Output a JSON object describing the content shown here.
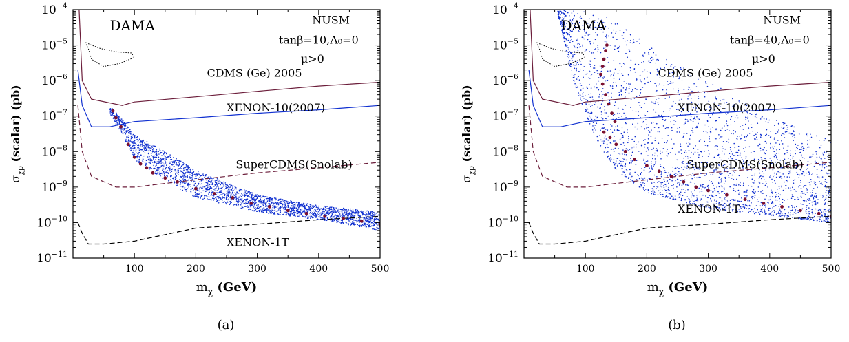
{
  "chart_data": [
    {
      "type": "scatter",
      "panel_label": "(a)",
      "xlabel": "m_χ (GeV)",
      "ylabel": "σ_χp (scalar) (pb)",
      "xlim": [
        0,
        500
      ],
      "ylim": [
        1e-11,
        0.0001
      ],
      "yscale": "log",
      "x_ticks": [
        "100",
        "200",
        "300",
        "400",
        "500"
      ],
      "y_ticks": [
        {
          "value": 1e-11,
          "base": "10",
          "exp": "−11"
        },
        {
          "value": 1e-10,
          "base": "10",
          "exp": "−10"
        },
        {
          "value": 1e-09,
          "base": "10",
          "exp": "−9"
        },
        {
          "value": 1e-08,
          "base": "10",
          "exp": "−8"
        },
        {
          "value": 1e-07,
          "base": "10",
          "exp": "−7"
        },
        {
          "value": 1e-06,
          "base": "10",
          "exp": "−6"
        },
        {
          "value": 1e-05,
          "base": "10",
          "exp": "−5"
        },
        {
          "value": 0.0001,
          "base": "10",
          "exp": "−4"
        }
      ],
      "annotations": {
        "model": "NUSM",
        "params": "tanβ=10,A₀=0",
        "mu": "μ>0",
        "dama": "DAMA"
      },
      "curves": [
        {
          "name": "CDMS (Ge) 2005",
          "style": "solid",
          "color": "#6b1d3a",
          "points": [
            [
              10,
              0.0001
            ],
            [
              15,
              1e-06
            ],
            [
              30,
              3e-07
            ],
            [
              80,
              2e-07
            ],
            [
              100,
              2.5e-07
            ],
            [
              200,
              3.5e-07
            ],
            [
              300,
              5e-07
            ],
            [
              400,
              7e-07
            ],
            [
              500,
              9e-07
            ]
          ]
        },
        {
          "name": "XENON-10(2007)",
          "style": "solid",
          "color": "#1030d0",
          "points": [
            [
              8,
              2e-06
            ],
            [
              15,
              2e-07
            ],
            [
              30,
              5e-08
            ],
            [
              60,
              5e-08
            ],
            [
              100,
              7e-08
            ],
            [
              200,
              9e-08
            ],
            [
              300,
              1.2e-07
            ],
            [
              400,
              1.5e-07
            ],
            [
              500,
              2e-07
            ]
          ]
        },
        {
          "name": "SuperCDMS(Snolab)",
          "style": "dashed",
          "color": "#6b1d3a",
          "points": [
            [
              8,
              2e-07
            ],
            [
              15,
              1e-08
            ],
            [
              30,
              2e-09
            ],
            [
              70,
              1e-09
            ],
            [
              100,
              1e-09
            ],
            [
              200,
              1.6e-09
            ],
            [
              300,
              2.5e-09
            ],
            [
              400,
              3.5e-09
            ],
            [
              500,
              5e-09
            ]
          ]
        },
        {
          "name": "XENON-1T",
          "style": "dashed",
          "color": "#000000",
          "points": [
            [
              8,
              1e-10
            ],
            [
              15,
              5e-11
            ],
            [
              25,
              2.5e-11
            ],
            [
              50,
              2.5e-11
            ],
            [
              100,
              3e-11
            ],
            [
              200,
              7e-11
            ],
            [
              300,
              9e-11
            ],
            [
              400,
              1.2e-10
            ],
            [
              500,
              1.5e-10
            ]
          ]
        }
      ],
      "dama_region": [
        [
          20,
          1.2e-05
        ],
        [
          25,
          8e-06
        ],
        [
          30,
          4e-06
        ],
        [
          50,
          2.5e-06
        ],
        [
          75,
          3e-06
        ],
        [
          100,
          4.5e-06
        ],
        [
          95,
          6e-06
        ],
        [
          70,
          6.5e-06
        ],
        [
          45,
          8e-06
        ],
        [
          30,
          1e-05
        ],
        [
          20,
          1.2e-05
        ]
      ],
      "scan_band": {
        "color": "#1030d0",
        "x_min": 60,
        "x_max": 500,
        "lower": [
          [
            60,
            1.2e-07
          ],
          [
            80,
            3e-08
          ],
          [
            100,
            6e-09
          ],
          [
            150,
            1.5e-09
          ],
          [
            200,
            5e-10
          ],
          [
            300,
            2e-10
          ],
          [
            400,
            1.2e-10
          ],
          [
            500,
            6e-11
          ]
        ],
        "upper": [
          [
            60,
            2e-07
          ],
          [
            80,
            8e-08
          ],
          [
            100,
            3e-08
          ],
          [
            150,
            1e-08
          ],
          [
            200,
            3e-09
          ],
          [
            300,
            6e-10
          ],
          [
            400,
            3e-10
          ],
          [
            500,
            2e-10
          ]
        ]
      },
      "highlight_points": {
        "color": "#7a1030",
        "points": [
          [
            65,
            1.4e-07
          ],
          [
            70,
            9e-08
          ],
          [
            78,
            5e-08
          ],
          [
            90,
            1.6e-08
          ],
          [
            100,
            7e-09
          ],
          [
            110,
            4.5e-09
          ],
          [
            120,
            3.5e-09
          ],
          [
            130,
            2.5e-09
          ],
          [
            150,
            1.8e-09
          ],
          [
            170,
            1.4e-09
          ],
          [
            200,
            9e-10
          ],
          [
            230,
            6.5e-10
          ],
          [
            260,
            5e-10
          ],
          [
            290,
            3.5e-10
          ],
          [
            320,
            2.8e-10
          ],
          [
            350,
            2.2e-10
          ],
          [
            380,
            1.8e-10
          ],
          [
            410,
            1.5e-10
          ],
          [
            440,
            1.3e-10
          ],
          [
            470,
            1.1e-10
          ],
          [
            500,
            9e-11
          ]
        ]
      }
    },
    {
      "type": "scatter",
      "panel_label": "(b)",
      "xlabel": "m_χ (GeV)",
      "ylabel": "σ_χp (scalar) (pb)",
      "xlim": [
        0,
        500
      ],
      "ylim": [
        1e-11,
        0.0001
      ],
      "yscale": "log",
      "x_ticks": [
        "100",
        "200",
        "300",
        "400",
        "500"
      ],
      "y_ticks": [
        {
          "value": 1e-11,
          "base": "10",
          "exp": "−11"
        },
        {
          "value": 1e-10,
          "base": "10",
          "exp": "−10"
        },
        {
          "value": 1e-09,
          "base": "10",
          "exp": "−9"
        },
        {
          "value": 1e-08,
          "base": "10",
          "exp": "−8"
        },
        {
          "value": 1e-07,
          "base": "10",
          "exp": "−7"
        },
        {
          "value": 1e-06,
          "base": "10",
          "exp": "−6"
        },
        {
          "value": 1e-05,
          "base": "10",
          "exp": "−5"
        },
        {
          "value": 0.0001,
          "base": "10",
          "exp": "−4"
        }
      ],
      "annotations": {
        "model": "NUSM",
        "params": "tanβ=40,A₀=0",
        "mu": "μ>0",
        "dama": "DAMA"
      },
      "curves": [
        {
          "name": "CDMS (Ge) 2005",
          "style": "solid",
          "color": "#6b1d3a",
          "points": [
            [
              10,
              0.0001
            ],
            [
              15,
              1e-06
            ],
            [
              30,
              3e-07
            ],
            [
              80,
              2e-07
            ],
            [
              100,
              2.5e-07
            ],
            [
              200,
              3.5e-07
            ],
            [
              300,
              5e-07
            ],
            [
              400,
              7e-07
            ],
            [
              500,
              9e-07
            ]
          ]
        },
        {
          "name": "XENON-10(2007)",
          "style": "solid",
          "color": "#1030d0",
          "points": [
            [
              8,
              2e-06
            ],
            [
              15,
              2e-07
            ],
            [
              30,
              5e-08
            ],
            [
              60,
              5e-08
            ],
            [
              100,
              7e-08
            ],
            [
              200,
              9e-08
            ],
            [
              300,
              1.2e-07
            ],
            [
              400,
              1.5e-07
            ],
            [
              500,
              2e-07
            ]
          ]
        },
        {
          "name": "SuperCDMS(Snolab)",
          "style": "dashed",
          "color": "#6b1d3a",
          "points": [
            [
              8,
              2e-07
            ],
            [
              15,
              1e-08
            ],
            [
              30,
              2e-09
            ],
            [
              70,
              1e-09
            ],
            [
              100,
              1e-09
            ],
            [
              200,
              1.6e-09
            ],
            [
              300,
              2.5e-09
            ],
            [
              400,
              3.5e-09
            ],
            [
              500,
              5e-09
            ]
          ]
        },
        {
          "name": "XENON-1T",
          "style": "dashed",
          "color": "#000000",
          "points": [
            [
              8,
              1e-10
            ],
            [
              15,
              5e-11
            ],
            [
              25,
              2.5e-11
            ],
            [
              50,
              2.5e-11
            ],
            [
              100,
              3e-11
            ],
            [
              200,
              7e-11
            ],
            [
              300,
              9e-11
            ],
            [
              400,
              1.2e-10
            ],
            [
              500,
              1.5e-10
            ]
          ]
        }
      ],
      "dama_region": [
        [
          20,
          1.2e-05
        ],
        [
          25,
          8e-06
        ],
        [
          30,
          4e-06
        ],
        [
          50,
          2.5e-06
        ],
        [
          75,
          3e-06
        ],
        [
          100,
          4.5e-06
        ],
        [
          95,
          6e-06
        ],
        [
          70,
          6.5e-06
        ],
        [
          45,
          8e-06
        ],
        [
          30,
          1e-05
        ],
        [
          20,
          1.2e-05
        ]
      ],
      "scan_band": {
        "color": "#1030d0",
        "x_min": 55,
        "x_max": 500,
        "lower": [
          [
            55,
            8e-05
          ],
          [
            80,
            1e-06
          ],
          [
            100,
            1.2e-07
          ],
          [
            120,
            1.8e-08
          ],
          [
            150,
            3e-09
          ],
          [
            200,
            7e-10
          ],
          [
            300,
            2.5e-10
          ],
          [
            400,
            1.6e-10
          ],
          [
            500,
            1e-10
          ]
        ],
        "upper": [
          [
            55,
            0.0001
          ],
          [
            80,
            0.0001
          ],
          [
            100,
            0.0001
          ],
          [
            150,
            5e-05
          ],
          [
            200,
            1e-05
          ],
          [
            300,
            1e-06
          ],
          [
            400,
            1e-07
          ],
          [
            500,
            2e-08
          ]
        ]
      },
      "highlight_points": {
        "color": "#7a1030",
        "points": [
          [
            135,
            1e-05
          ],
          [
            133,
            7e-06
          ],
          [
            130,
            4e-06
          ],
          [
            128,
            2.5e-06
          ],
          [
            125,
            1.5e-06
          ],
          [
            128,
            8e-07
          ],
          [
            133,
            4e-07
          ],
          [
            138,
            2.2e-07
          ],
          [
            143,
            1.2e-07
          ],
          [
            148,
            7e-08
          ],
          [
            130,
            3.5e-08
          ],
          [
            140,
            2.5e-08
          ],
          [
            150,
            1.6e-08
          ],
          [
            165,
            1e-08
          ],
          [
            180,
            6e-09
          ],
          [
            200,
            4e-09
          ],
          [
            220,
            2.8e-09
          ],
          [
            240,
            2e-09
          ],
          [
            260,
            1.4e-09
          ],
          [
            280,
            1e-09
          ],
          [
            300,
            8e-10
          ],
          [
            330,
            6e-10
          ],
          [
            360,
            4.5e-10
          ],
          [
            390,
            3.5e-10
          ],
          [
            420,
            2.8e-10
          ],
          [
            450,
            2.2e-10
          ],
          [
            480,
            1.8e-10
          ],
          [
            500,
            1.5e-10
          ]
        ]
      }
    }
  ]
}
